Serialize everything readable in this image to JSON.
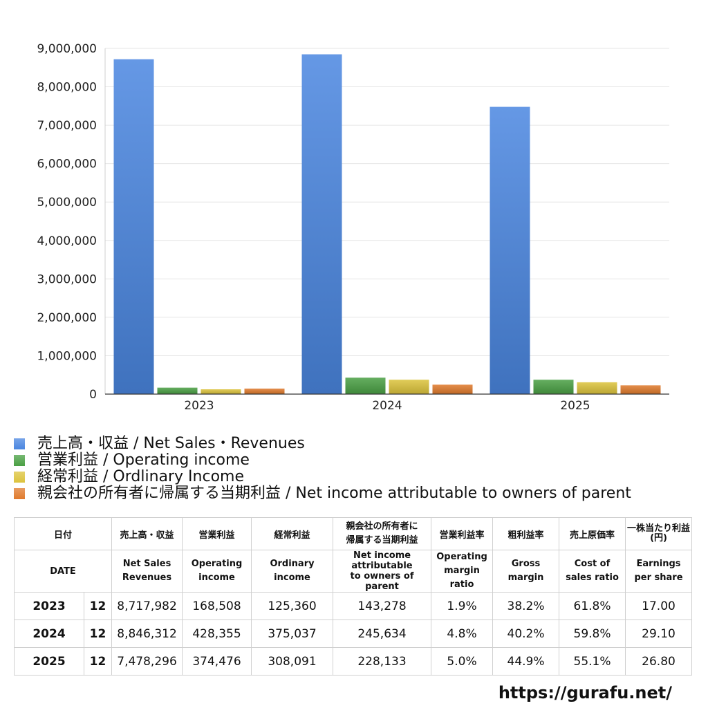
{
  "chart_data": {
    "type": "bar",
    "categories": [
      "2023",
      "2024",
      "2025"
    ],
    "ylim": [
      0,
      9000000
    ],
    "yticks": [
      "0",
      "1,000,000",
      "2,000,000",
      "3,000,000",
      "4,000,000",
      "5,000,000",
      "6,000,000",
      "7,000,000",
      "8,000,000",
      "9,000,000"
    ],
    "grid": true,
    "legend_position": "bottom",
    "series": [
      {
        "name": "売上高・収益 / Net Sales・Revenues",
        "color": "#4a86e0",
        "values": [
          8717982,
          8846312,
          7478296
        ]
      },
      {
        "name": "営業利益 / Operating income",
        "color": "#4aa044",
        "values": [
          168508,
          428355,
          374476
        ]
      },
      {
        "name": "経常利益 / Ordlinary Income",
        "color": "#dcc33c",
        "values": [
          125360,
          375037,
          308091
        ]
      },
      {
        "name": "親会社の所有者に帰属する当期利益 / Net income attributable to owners of parent",
        "color": "#e07a2c",
        "values": [
          143278,
          245634,
          228133
        ]
      }
    ]
  },
  "table": {
    "header_jp": {
      "date": "日付",
      "sales": "売上高・収益",
      "op": "営業利益",
      "ord": "経常利益",
      "ni_line1": "親会社の所有者に",
      "ni_line2": "帰属する当期利益",
      "opm": "営業利益率",
      "gm": "粗利益率",
      "cost": "売上原価率",
      "eps_line1": "一株当たり利益",
      "eps_line2": "(円)"
    },
    "header_en": {
      "date": "DATE",
      "sales_1": "Net Sales",
      "sales_2": "Revenues",
      "op_1": "Operating",
      "op_2": "income",
      "ord_1": "Ordinary",
      "ord_2": "income",
      "ni_1": "Net income attributable",
      "ni_2": "to owners of parent",
      "opm_1": "Operating",
      "opm_2": "margin",
      "opm_3": "ratio",
      "gm_1": "Gross",
      "gm_2": "margin",
      "cost_1": "Cost of",
      "cost_2": "sales ratio",
      "eps_1": "Earnings",
      "eps_2": "per share"
    },
    "rows": [
      {
        "year": "2023",
        "month": "12",
        "sales": "8,717,982",
        "op": "168,508",
        "ord": "125,360",
        "ni": "143,278",
        "opm": "1.9%",
        "gm": "38.2%",
        "cost": "61.8%",
        "eps": "17.00"
      },
      {
        "year": "2024",
        "month": "12",
        "sales": "8,846,312",
        "op": "428,355",
        "ord": "375,037",
        "ni": "245,634",
        "opm": "4.8%",
        "gm": "40.2%",
        "cost": "59.8%",
        "eps": "29.10"
      },
      {
        "year": "2025",
        "month": "12",
        "sales": "7,478,296",
        "op": "374,476",
        "ord": "308,091",
        "ni": "228,133",
        "opm": "5.0%",
        "gm": "44.9%",
        "cost": "55.1%",
        "eps": "26.80"
      }
    ]
  },
  "source": "https://gurafu.net/"
}
